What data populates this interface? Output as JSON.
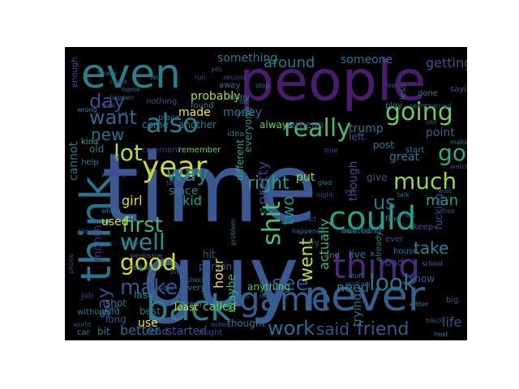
{
  "wordcloud": {
    "background": "#000000",
    "words": [
      {
        "text": "time",
        "color": "#3b5a92"
      },
      {
        "text": "guy",
        "color": "#3b5a92"
      },
      {
        "text": "people",
        "color": "#4a1c6e"
      },
      {
        "text": "even",
        "color": "#2a7f8a"
      },
      {
        "text": "think",
        "color": "#2c728e"
      },
      {
        "text": "never",
        "color": "#355f8d"
      },
      {
        "text": "back",
        "color": "#2f7d8c"
      },
      {
        "text": "game",
        "color": "#34618d"
      },
      {
        "text": "could",
        "color": "#25a08a"
      },
      {
        "text": "thing",
        "color": "#4a2a7a"
      },
      {
        "text": "year",
        "color": "#c7d93a"
      },
      {
        "text": "also",
        "color": "#2b7b8e"
      },
      {
        "text": "going",
        "color": "#6ccd5a"
      },
      {
        "text": "good",
        "color": "#d8e219"
      },
      {
        "text": "well",
        "color": "#2e8a8b"
      },
      {
        "text": "make",
        "color": "#3a548c"
      },
      {
        "text": "really",
        "color": "#3dbc74"
      },
      {
        "text": "much",
        "color": "#95d840"
      },
      {
        "text": "way",
        "color": "#26828e"
      },
      {
        "text": "look",
        "color": "#2a768e"
      },
      {
        "text": "work",
        "color": "#2d6f8e"
      },
      {
        "text": "shit",
        "color": "#4ac16d"
      },
      {
        "text": "see",
        "color": "#3b528b"
      },
      {
        "text": "first",
        "color": "#3dbc74"
      },
      {
        "text": "want",
        "color": "#31688e"
      },
      {
        "text": "day",
        "color": "#3e4a89"
      },
      {
        "text": "new",
        "color": "#2d708e"
      },
      {
        "text": "lot",
        "color": "#b5de2b"
      },
      {
        "text": "right",
        "color": "#1fa187"
      },
      {
        "text": "said",
        "color": "#3b528b"
      },
      {
        "text": "friend",
        "color": "#365c8d"
      },
      {
        "text": "go",
        "color": "#27ad81"
      },
      {
        "text": "say",
        "color": "#3e4989"
      },
      {
        "text": "went",
        "color": "#bddf26"
      },
      {
        "text": "take",
        "color": "#23888e"
      },
      {
        "text": "around",
        "color": "#29788e"
      },
      {
        "text": "something",
        "color": "#2a788e"
      },
      {
        "text": "getting",
        "color": "#3b528b"
      },
      {
        "text": "someone",
        "color": "#2c728e"
      },
      {
        "text": "probably",
        "color": "#b5de2b"
      },
      {
        "text": "trump",
        "color": "#2a788e"
      },
      {
        "text": "point",
        "color": "#32648e"
      },
      {
        "text": "man",
        "color": "#1f9e89"
      },
      {
        "text": "pretty",
        "color": "#443983"
      },
      {
        "text": "two",
        "color": "#21918c"
      },
      {
        "text": "actually",
        "color": "#35b779"
      },
      {
        "text": "month",
        "color": "#482878"
      },
      {
        "text": "kid",
        "color": "#1fa088"
      },
      {
        "text": "girl",
        "color": "#dde318"
      },
      {
        "text": "used",
        "color": "#e5e419"
      },
      {
        "text": "since",
        "color": "#26828e"
      },
      {
        "text": "hour",
        "color": "#fde725"
      },
      {
        "text": "need",
        "color": "#2a788e"
      },
      {
        "text": "life",
        "color": "#3b528b"
      },
      {
        "text": "us",
        "color": "#2a788e"
      },
      {
        "text": "made",
        "color": "#fde725"
      },
      {
        "text": "money",
        "color": "#2c728e"
      },
      {
        "text": "trying",
        "color": "#2a788e"
      },
      {
        "text": "maybe",
        "color": "#35b779"
      },
      {
        "text": "anything",
        "color": "#4ac16d"
      },
      {
        "text": "cannot",
        "color": "#2a788e"
      },
      {
        "text": "though",
        "color": "#3b528b"
      },
      {
        "text": "always",
        "color": "#6ece58"
      },
      {
        "text": "mean",
        "color": "#3b528b"
      },
      {
        "text": "great",
        "color": "#287d8e"
      },
      {
        "text": "come",
        "color": "#2a788e"
      },
      {
        "text": "another",
        "color": "#26828e"
      },
      {
        "text": "comment",
        "color": "#433e85"
      },
      {
        "text": "remember",
        "color": "#6ece58"
      },
      {
        "text": "little",
        "color": "#414487"
      },
      {
        "text": "women",
        "color": "#3e4a89"
      },
      {
        "text": "old",
        "color": "#2a788e"
      },
      {
        "text": "kind",
        "color": "#35b779"
      },
      {
        "text": "help",
        "color": "#2a788e"
      },
      {
        "text": "left",
        "color": "#3b528b"
      },
      {
        "text": "put",
        "color": "#90d743"
      },
      {
        "text": "everyone",
        "color": "#1f968b"
      },
      {
        "text": "different",
        "color": "#27ad81"
      },
      {
        "text": "idea",
        "color": "#2c728e"
      },
      {
        "text": "year",
        "color": "#2a788e"
      },
      {
        "text": "better",
        "color": "#2c728e"
      },
      {
        "text": "read",
        "color": "#3b528b"
      },
      {
        "text": "started",
        "color": "#3b528b"
      },
      {
        "text": "might",
        "color": "#414487"
      },
      {
        "text": "thought",
        "color": "#2a788e"
      },
      {
        "text": "least",
        "color": "#dde318"
      },
      {
        "text": "called",
        "color": "#6ece58"
      },
      {
        "text": "last",
        "color": "#26828e"
      },
      {
        "text": "best",
        "color": "#2a788e"
      },
      {
        "text": "use",
        "color": "#fde725"
      },
      {
        "text": "hard",
        "color": "#2c728e"
      },
      {
        "text": "shot",
        "color": "#2a788e"
      },
      {
        "text": "long",
        "color": "#3b528b"
      },
      {
        "text": "bit",
        "color": "#2a788e"
      },
      {
        "text": "car",
        "color": "#26828e"
      },
      {
        "text": "job",
        "color": "#433e85"
      },
      {
        "text": "without",
        "color": "#2a788e"
      },
      {
        "text": "saw",
        "color": "#3b528b"
      },
      {
        "text": "every",
        "color": "#2a788e"
      },
      {
        "text": "person",
        "color": "#3b528b"
      },
      {
        "text": "real",
        "color": "#2a788e"
      },
      {
        "text": "hit",
        "color": "#3b528b"
      },
      {
        "text": "reason",
        "color": "#2c728e"
      },
      {
        "text": "end",
        "color": "#2a788e"
      },
      {
        "text": "try",
        "color": "#3b528b"
      },
      {
        "text": "live",
        "color": "#2a788e"
      },
      {
        "text": "ever",
        "color": "#3b528b"
      },
      {
        "text": "house",
        "color": "#2a788e"
      },
      {
        "text": "show",
        "color": "#3b528b"
      },
      {
        "text": "bad",
        "color": "#414487"
      },
      {
        "text": "keep",
        "color": "#3b528b"
      },
      {
        "text": "find",
        "color": "#2a788e"
      },
      {
        "text": "wanted",
        "color": "#2a788e"
      },
      {
        "text": "hand",
        "color": "#2c728e"
      },
      {
        "text": "already",
        "color": "#26828e"
      },
      {
        "text": "give",
        "color": "#3b528b"
      },
      {
        "text": "fucking",
        "color": "#3b528b"
      },
      {
        "text": "post",
        "color": "#2a788e"
      },
      {
        "text": "start",
        "color": "#2a788e"
      },
      {
        "text": "lol",
        "color": "#3b528b"
      },
      {
        "text": "place",
        "color": "#2c728e"
      },
      {
        "text": "found",
        "color": "#2a788e"
      },
      {
        "text": "nothing",
        "color": "#3b528b"
      },
      {
        "text": "many",
        "color": "#2a788e"
      },
      {
        "text": "away",
        "color": "#2a788e"
      },
      {
        "text": "second",
        "color": "#3b528b"
      },
      {
        "text": "play",
        "color": "#2a788e"
      },
      {
        "text": "feel",
        "color": "#3b528b"
      },
      {
        "text": "done",
        "color": "#2a788e"
      },
      {
        "text": "less",
        "color": "#2a788e"
      },
      {
        "text": "saying",
        "color": "#3b528b"
      },
      {
        "text": "enough",
        "color": "#3b528b"
      },
      {
        "text": "finally",
        "color": "#2a788e"
      },
      {
        "text": "came",
        "color": "#3b528b"
      },
      {
        "text": "wrong",
        "color": "#2a788e"
      },
      {
        "text": "took",
        "color": "#3b528b"
      },
      {
        "text": "tell",
        "color": "#2a788e"
      },
      {
        "text": "told",
        "color": "#3b528b"
      },
      {
        "text": "problem",
        "color": "#2a788e"
      },
      {
        "text": "almost",
        "color": "#3b528b"
      },
      {
        "text": "whole",
        "color": "#2a788e"
      },
      {
        "text": "guess",
        "color": "#2a788e"
      },
      {
        "text": "phone",
        "color": "#3b528b"
      },
      {
        "text": "issue",
        "color": "#2a788e"
      },
      {
        "text": "week",
        "color": "#3b528b"
      },
      {
        "text": "dude",
        "color": "#2a788e"
      },
      {
        "text": "fact",
        "color": "#3b528b"
      },
      {
        "text": "happened",
        "color": "#2a788e"
      },
      {
        "text": "asked",
        "color": "#3b528b"
      },
      {
        "text": "gets",
        "color": "#2a788e"
      },
      {
        "text": "let",
        "color": "#3b528b"
      },
      {
        "text": "stuff",
        "color": "#2a788e"
      },
      {
        "text": "working",
        "color": "#3b528b"
      },
      {
        "text": "school",
        "color": "#2a788e"
      },
      {
        "text": "big",
        "color": "#3b528b"
      },
      {
        "text": "next",
        "color": "#2a788e"
      },
      {
        "text": "black",
        "color": "#3b528b"
      },
      {
        "text": "seem",
        "color": "#2a788e"
      },
      {
        "text": "married",
        "color": "#3b528b"
      },
      {
        "text": "glad",
        "color": "#2a788e"
      },
      {
        "text": "night",
        "color": "#3b528b"
      },
      {
        "text": "stop",
        "color": "#2a788e"
      },
      {
        "text": "yet",
        "color": "#3b528b"
      },
      {
        "text": "etc",
        "color": "#2a788e"
      },
      {
        "text": "free",
        "color": "#3b528b"
      },
      {
        "text": "either",
        "color": "#2a788e"
      },
      {
        "text": "world",
        "color": "#3b528b"
      },
      {
        "text": "part",
        "color": "#2a788e"
      },
      {
        "text": "set",
        "color": "#3b528b"
      },
      {
        "text": "home",
        "color": "#2a788e"
      },
      {
        "text": "call",
        "color": "#3b528b"
      },
      {
        "text": "happen",
        "color": "#2a788e"
      },
      {
        "text": "lot",
        "color": "#2a788e"
      },
      {
        "text": "yes",
        "color": "#3b528b"
      },
      {
        "text": "fun",
        "color": "#2a788e"
      },
      {
        "text": "true",
        "color": "#3b528b"
      },
      {
        "text": "talk",
        "color": "#2a788e"
      },
      {
        "text": "bit",
        "color": "#3b528b"
      },
      {
        "text": "check",
        "color": "#2a788e"
      },
      {
        "text": "run",
        "color": "#3b528b"
      },
      {
        "text": "making",
        "color": "#2a788e"
      },
      {
        "text": "wait",
        "color": "#3b528b"
      },
      {
        "text": "live",
        "color": "#2a788e"
      },
      {
        "text": "watch",
        "color": "#3b528b"
      }
    ]
  }
}
